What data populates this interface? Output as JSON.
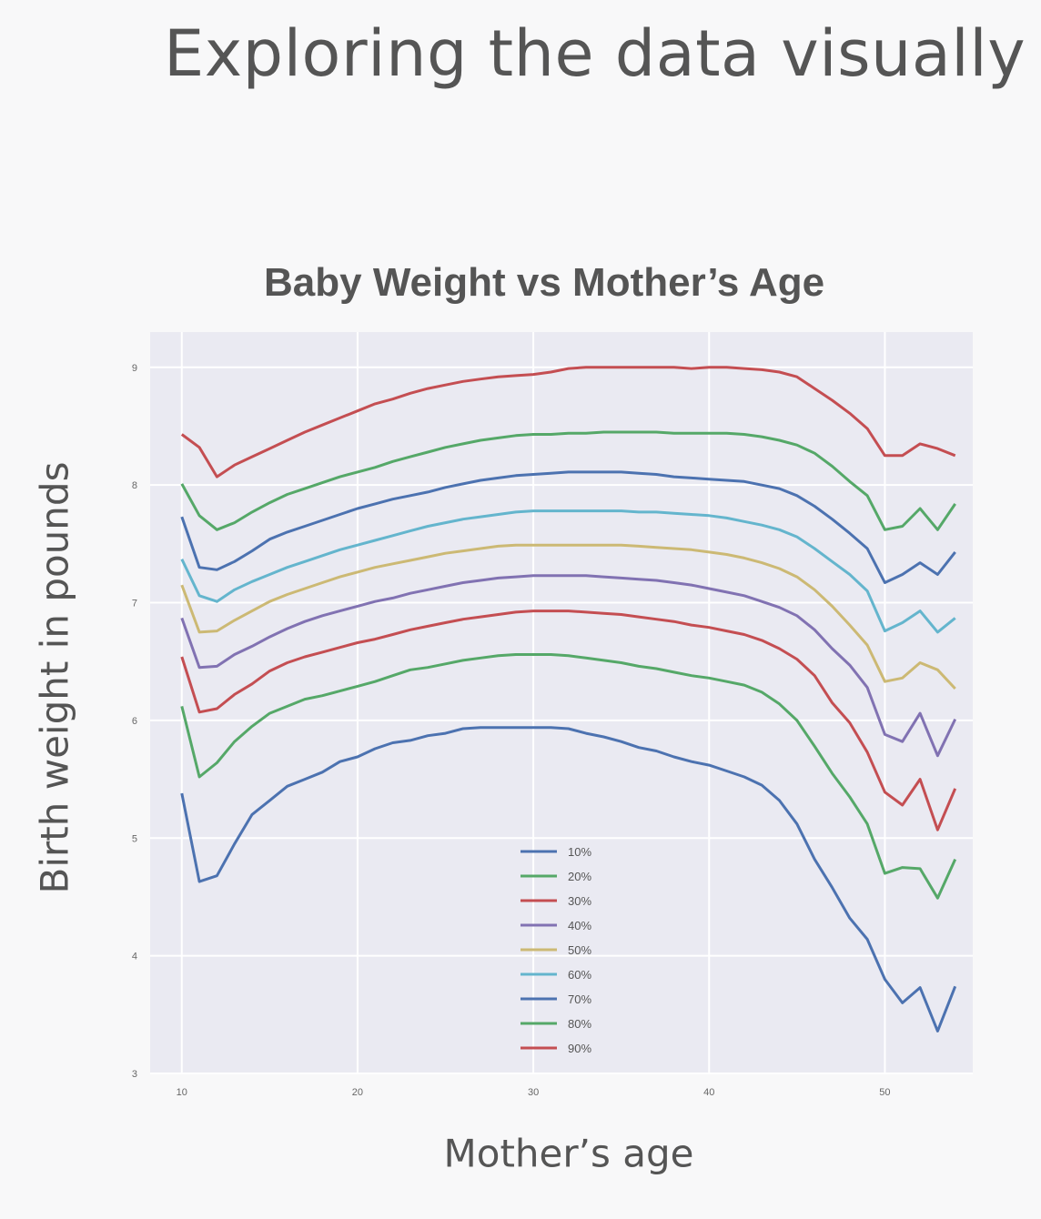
{
  "slide": {
    "title": "Exploring the data visually"
  },
  "colors": {
    "background": "#f8f8f9",
    "plot_background": "#eaeaf2",
    "grid": "#ffffff",
    "text": "#555555"
  },
  "chart_data": {
    "type": "line",
    "title": "Baby Weight vs Mother’s Age",
    "xlabel": "Mother’s age",
    "ylabel": "Birth weight in pounds",
    "xlim": [
      8.2,
      55
    ],
    "ylim": [
      3,
      9.3
    ],
    "xticks": [
      10,
      20,
      30,
      40,
      50
    ],
    "yticks": [
      3,
      4,
      5,
      6,
      7,
      8,
      9
    ],
    "grid": true,
    "legend_position": "lower-center",
    "x": [
      10,
      11,
      12,
      13,
      14,
      15,
      16,
      17,
      18,
      19,
      20,
      21,
      22,
      23,
      24,
      25,
      26,
      27,
      28,
      29,
      30,
      31,
      32,
      33,
      34,
      35,
      36,
      37,
      38,
      39,
      40,
      41,
      42,
      43,
      44,
      45,
      46,
      47,
      48,
      49,
      50,
      51,
      52,
      53,
      54
    ],
    "series": [
      {
        "name": "10%",
        "color": "#4c72b0",
        "values": [
          5.38,
          4.63,
          4.68,
          4.95,
          5.2,
          5.32,
          5.44,
          5.5,
          5.56,
          5.65,
          5.69,
          5.76,
          5.81,
          5.83,
          5.87,
          5.89,
          5.93,
          5.94,
          5.94,
          5.94,
          5.94,
          5.94,
          5.93,
          5.89,
          5.86,
          5.82,
          5.77,
          5.74,
          5.69,
          5.65,
          5.62,
          5.57,
          5.52,
          5.45,
          5.32,
          5.12,
          4.82,
          4.58,
          4.32,
          4.14,
          3.8,
          3.6,
          3.73,
          3.36,
          3.74
        ]
      },
      {
        "name": "20%",
        "color": "#55a868",
        "values": [
          6.12,
          5.52,
          5.64,
          5.82,
          5.95,
          6.06,
          6.12,
          6.18,
          6.21,
          6.25,
          6.29,
          6.33,
          6.38,
          6.43,
          6.45,
          6.48,
          6.51,
          6.53,
          6.55,
          6.56,
          6.56,
          6.56,
          6.55,
          6.53,
          6.51,
          6.49,
          6.46,
          6.44,
          6.41,
          6.38,
          6.36,
          6.33,
          6.3,
          6.24,
          6.14,
          6.0,
          5.78,
          5.55,
          5.35,
          5.12,
          4.7,
          4.75,
          4.74,
          4.49,
          4.82
        ]
      },
      {
        "name": "30%",
        "color": "#c44e52",
        "values": [
          6.54,
          6.07,
          6.1,
          6.22,
          6.31,
          6.42,
          6.49,
          6.54,
          6.58,
          6.62,
          6.66,
          6.69,
          6.73,
          6.77,
          6.8,
          6.83,
          6.86,
          6.88,
          6.9,
          6.92,
          6.93,
          6.93,
          6.93,
          6.92,
          6.91,
          6.9,
          6.88,
          6.86,
          6.84,
          6.81,
          6.79,
          6.76,
          6.73,
          6.68,
          6.61,
          6.52,
          6.38,
          6.15,
          5.98,
          5.73,
          5.39,
          5.28,
          5.5,
          5.07,
          5.42
        ]
      },
      {
        "name": "40%",
        "color": "#8172b2",
        "values": [
          6.87,
          6.45,
          6.46,
          6.56,
          6.63,
          6.71,
          6.78,
          6.84,
          6.89,
          6.93,
          6.97,
          7.01,
          7.04,
          7.08,
          7.11,
          7.14,
          7.17,
          7.19,
          7.21,
          7.22,
          7.23,
          7.23,
          7.23,
          7.23,
          7.22,
          7.21,
          7.2,
          7.19,
          7.17,
          7.15,
          7.12,
          7.09,
          7.06,
          7.01,
          6.96,
          6.89,
          6.77,
          6.61,
          6.47,
          6.28,
          5.88,
          5.82,
          6.06,
          5.7,
          6.01
        ]
      },
      {
        "name": "50%",
        "color": "#ccb974",
        "values": [
          7.15,
          6.75,
          6.76,
          6.85,
          6.93,
          7.01,
          7.07,
          7.12,
          7.17,
          7.22,
          7.26,
          7.3,
          7.33,
          7.36,
          7.39,
          7.42,
          7.44,
          7.46,
          7.48,
          7.49,
          7.49,
          7.49,
          7.49,
          7.49,
          7.49,
          7.49,
          7.48,
          7.47,
          7.46,
          7.45,
          7.43,
          7.41,
          7.38,
          7.34,
          7.29,
          7.22,
          7.11,
          6.97,
          6.81,
          6.64,
          6.33,
          6.36,
          6.49,
          6.43,
          6.27
        ]
      },
      {
        "name": "60%",
        "color": "#64b5cd",
        "values": [
          7.37,
          7.06,
          7.01,
          7.11,
          7.18,
          7.24,
          7.3,
          7.35,
          7.4,
          7.45,
          7.49,
          7.53,
          7.57,
          7.61,
          7.65,
          7.68,
          7.71,
          7.73,
          7.75,
          7.77,
          7.78,
          7.78,
          7.78,
          7.78,
          7.78,
          7.78,
          7.77,
          7.77,
          7.76,
          7.75,
          7.74,
          7.72,
          7.69,
          7.66,
          7.62,
          7.56,
          7.46,
          7.35,
          7.24,
          7.1,
          6.76,
          6.83,
          6.93,
          6.75,
          6.87
        ]
      },
      {
        "name": "70%",
        "color": "#4c72b0",
        "values": [
          7.73,
          7.3,
          7.28,
          7.35,
          7.44,
          7.54,
          7.6,
          7.65,
          7.7,
          7.75,
          7.8,
          7.84,
          7.88,
          7.91,
          7.94,
          7.98,
          8.01,
          8.04,
          8.06,
          8.08,
          8.09,
          8.1,
          8.11,
          8.11,
          8.11,
          8.11,
          8.1,
          8.09,
          8.07,
          8.06,
          8.05,
          8.04,
          8.03,
          8.0,
          7.97,
          7.91,
          7.82,
          7.71,
          7.59,
          7.46,
          7.17,
          7.24,
          7.34,
          7.24,
          7.43
        ]
      },
      {
        "name": "80%",
        "color": "#55a868",
        "values": [
          8.01,
          7.74,
          7.62,
          7.68,
          7.77,
          7.85,
          7.92,
          7.97,
          8.02,
          8.07,
          8.11,
          8.15,
          8.2,
          8.24,
          8.28,
          8.32,
          8.35,
          8.38,
          8.4,
          8.42,
          8.43,
          8.43,
          8.44,
          8.44,
          8.45,
          8.45,
          8.45,
          8.45,
          8.44,
          8.44,
          8.44,
          8.44,
          8.43,
          8.41,
          8.38,
          8.34,
          8.27,
          8.16,
          8.03,
          7.91,
          7.62,
          7.65,
          7.8,
          7.62,
          7.84
        ]
      },
      {
        "name": "90%",
        "color": "#c44e52",
        "values": [
          8.43,
          8.32,
          8.07,
          8.17,
          8.24,
          8.31,
          8.38,
          8.45,
          8.51,
          8.57,
          8.63,
          8.69,
          8.73,
          8.78,
          8.82,
          8.85,
          8.88,
          8.9,
          8.92,
          8.93,
          8.94,
          8.96,
          8.99,
          9.0,
          9.0,
          9.0,
          9.0,
          9.0,
          9.0,
          8.99,
          9.0,
          9.0,
          8.99,
          8.98,
          8.96,
          8.92,
          8.82,
          8.72,
          8.61,
          8.48,
          8.25,
          8.25,
          8.35,
          8.31,
          8.25
        ]
      }
    ]
  }
}
